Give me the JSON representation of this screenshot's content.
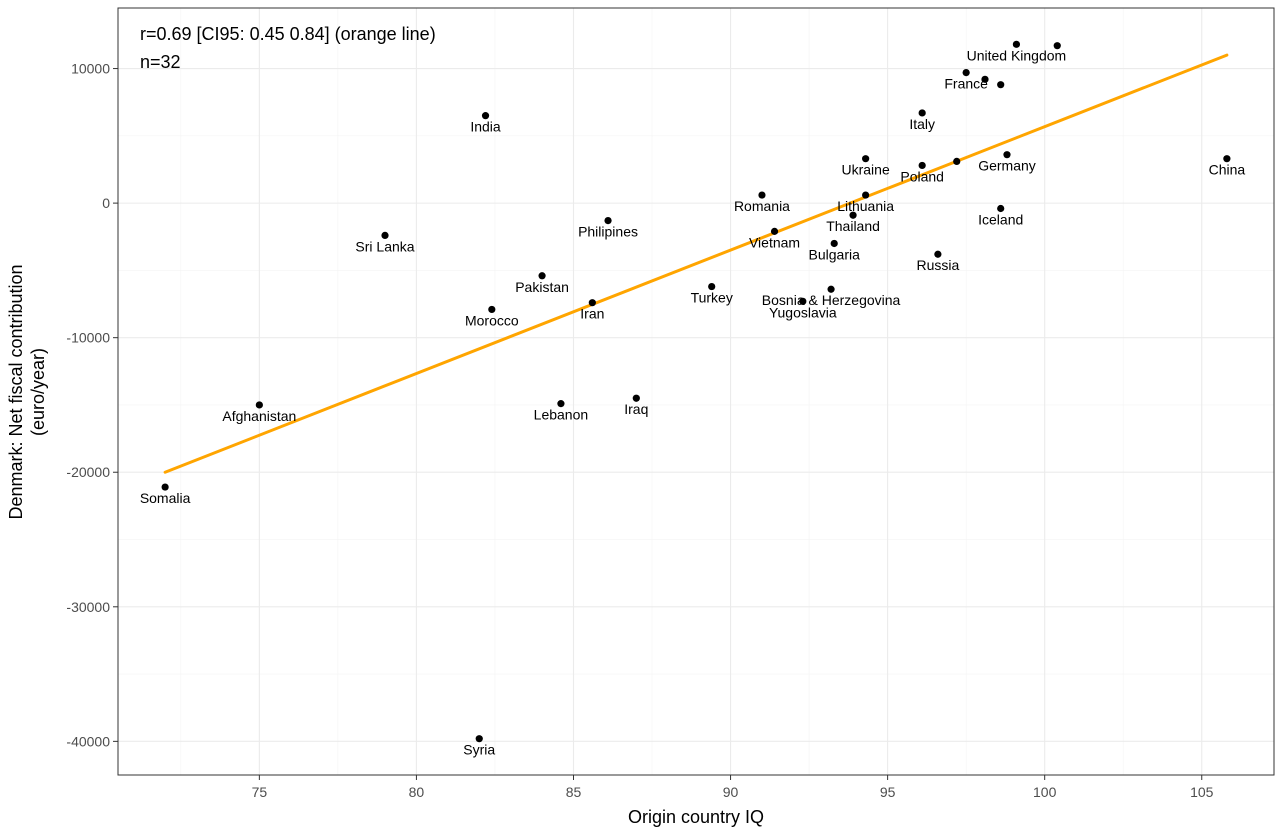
{
  "chart_data": {
    "type": "scatter",
    "xlabel": "Origin country IQ",
    "ylabel_lines": [
      "Denmark: Net fiscal contribution",
      "(euro/year)"
    ],
    "xlim": [
      70.5,
      107.3
    ],
    "ylim": [
      -42500,
      14500
    ],
    "xticks": [
      75,
      80,
      85,
      90,
      95,
      100,
      105
    ],
    "yticks": [
      -40000,
      -30000,
      -20000,
      -10000,
      0,
      10000
    ],
    "grid": true,
    "annotations": [
      "r=0.69 [CI95: 0.45 0.84] (orange line)",
      "n=32"
    ],
    "colors": {
      "points": "#000000",
      "line": "#FFA500",
      "grid_major": "#EBEBEB",
      "grid_minor": "#F4F4F4",
      "border": "#333333"
    },
    "regression_line": {
      "x": [
        72.0,
        105.8
      ],
      "y": [
        -20000,
        11000
      ]
    },
    "points": [
      {
        "label": "United Kingdom",
        "x": 99.1,
        "y": 11800
      },
      {
        "label": "",
        "x": 100.4,
        "y": 11700
      },
      {
        "label": "France",
        "x": 97.5,
        "y": 9700
      },
      {
        "label": "",
        "x": 98.1,
        "y": 9200
      },
      {
        "label": "",
        "x": 98.6,
        "y": 8800
      },
      {
        "label": "India",
        "x": 82.2,
        "y": 6500
      },
      {
        "label": "Italy",
        "x": 96.1,
        "y": 6700
      },
      {
        "label": "Germany",
        "x": 98.8,
        "y": 3600
      },
      {
        "label": "Ukraine",
        "x": 94.3,
        "y": 3300
      },
      {
        "label": "China",
        "x": 105.8,
        "y": 3300
      },
      {
        "label": "",
        "x": 97.2,
        "y": 3100
      },
      {
        "label": "Poland",
        "x": 96.1,
        "y": 2800
      },
      {
        "label": "Romania",
        "x": 91.0,
        "y": 600
      },
      {
        "label": "Lithuania",
        "x": 94.3,
        "y": 600
      },
      {
        "label": "Iceland",
        "x": 98.6,
        "y": -400
      },
      {
        "label": "Thailand",
        "x": 93.9,
        "y": -900
      },
      {
        "label": "Philipines",
        "x": 86.1,
        "y": -1300
      },
      {
        "label": "Vietnam",
        "x": 91.4,
        "y": -2100
      },
      {
        "label": "Sri Lanka",
        "x": 79.0,
        "y": -2400
      },
      {
        "label": "Bulgaria",
        "x": 93.3,
        "y": -3000
      },
      {
        "label": "Russia",
        "x": 96.6,
        "y": -3800
      },
      {
        "label": "Pakistan",
        "x": 84.0,
        "y": -5400
      },
      {
        "label": "Turkey",
        "x": 89.4,
        "y": -6200
      },
      {
        "label": "Bosnia & Herzegovina",
        "x": 93.2,
        "y": -6400
      },
      {
        "label": "Iran",
        "x": 85.6,
        "y": -7400
      },
      {
        "label": "Yugoslavia",
        "x": 92.3,
        "y": -7300
      },
      {
        "label": "Morocco",
        "x": 82.4,
        "y": -7900
      },
      {
        "label": "Iraq",
        "x": 87.0,
        "y": -14500
      },
      {
        "label": "Lebanon",
        "x": 84.6,
        "y": -14900
      },
      {
        "label": "Afghanistan",
        "x": 75.0,
        "y": -15000
      },
      {
        "label": "Somalia",
        "x": 72.0,
        "y": -21100
      },
      {
        "label": "Syria",
        "x": 82.0,
        "y": -39800
      }
    ]
  }
}
